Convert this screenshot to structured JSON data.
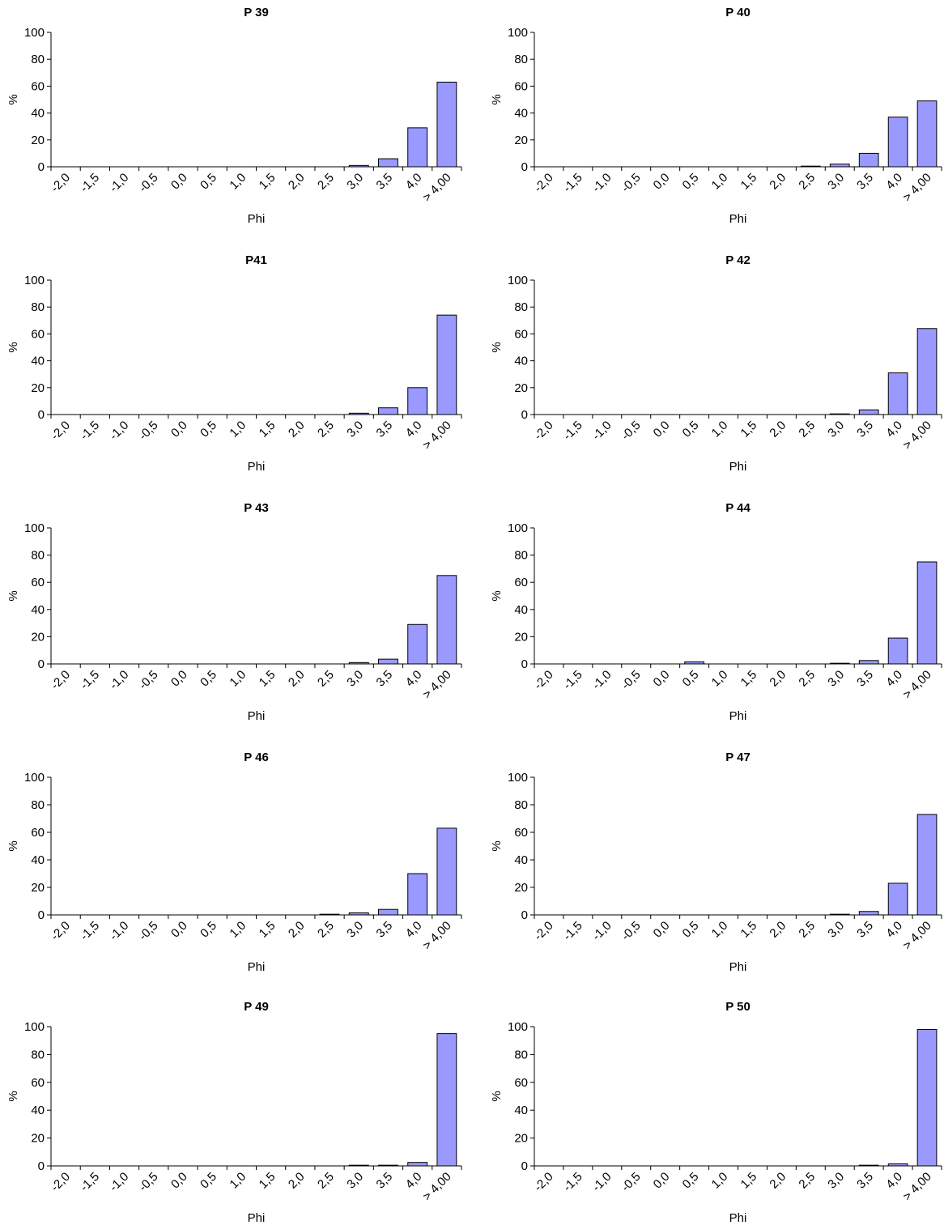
{
  "chart_data": [
    {
      "type": "bar",
      "title": "P 39",
      "ylabel": "%",
      "xlabel": "Phi",
      "color": "#9999ff",
      "categories": [
        "-2,0",
        "-1,5",
        "-1,0",
        "-0,5",
        "0,0",
        "0,5",
        "1,0",
        "1,5",
        "2,0",
        "2,5",
        "3,0",
        "3,5",
        "4,0",
        "> 4,00"
      ],
      "values": [
        0,
        0,
        0,
        0,
        0,
        0,
        0,
        0,
        0,
        0,
        1,
        6,
        29,
        63
      ],
      "ylim": [
        0,
        100
      ],
      "yticks": [
        0,
        20,
        40,
        60,
        80,
        100
      ]
    },
    {
      "type": "bar",
      "title": "P 40",
      "ylabel": "%",
      "xlabel": "Phi",
      "color": "#9999ff",
      "categories": [
        "-2,0",
        "-1,5",
        "-1,0",
        "-0,5",
        "0,0",
        "0,5",
        "1,0",
        "1,5",
        "2,0",
        "2,5",
        "3,0",
        "3,5",
        "4,0",
        "> 4,00"
      ],
      "values": [
        0,
        0,
        0,
        0,
        0,
        0,
        0,
        0,
        0,
        0.5,
        2,
        10,
        37,
        49
      ],
      "ylim": [
        0,
        100
      ],
      "yticks": [
        0,
        20,
        40,
        60,
        80,
        100
      ]
    },
    {
      "type": "bar",
      "title": "P41",
      "ylabel": "%",
      "xlabel": "Phi",
      "color": "#9999ff",
      "categories": [
        "-2,0",
        "-1,5",
        "-1,0",
        "-0,5",
        "0,0",
        "0,5",
        "1,0",
        "1,5",
        "2,0",
        "2,5",
        "3,0",
        "3,5",
        "4,0",
        "> 4,00"
      ],
      "values": [
        0,
        0,
        0,
        0,
        0,
        0,
        0,
        0,
        0,
        0,
        1,
        5,
        20,
        74
      ],
      "ylim": [
        0,
        100
      ],
      "yticks": [
        0,
        20,
        40,
        60,
        80,
        100
      ]
    },
    {
      "type": "bar",
      "title": "P 42",
      "ylabel": "%",
      "xlabel": "Phi",
      "color": "#9999ff",
      "categories": [
        "-2,0",
        "-1,5",
        "-1,0",
        "-0,5",
        "0,0",
        "0,5",
        "1,0",
        "1,5",
        "2,0",
        "2,5",
        "3,0",
        "3,5",
        "4,0",
        "> 4,00"
      ],
      "values": [
        0,
        0,
        0,
        0,
        0,
        0,
        0,
        0,
        0,
        0,
        0.5,
        3.5,
        31,
        64
      ],
      "ylim": [
        0,
        100
      ],
      "yticks": [
        0,
        20,
        40,
        60,
        80,
        100
      ]
    },
    {
      "type": "bar",
      "title": "P 43",
      "ylabel": "%",
      "xlabel": "Phi",
      "color": "#9999ff",
      "categories": [
        "-2,0",
        "-1,5",
        "-1,0",
        "-0,5",
        "0,0",
        "0,5",
        "1,0",
        "1,5",
        "2,0",
        "2,5",
        "3,0",
        "3,5",
        "4,0",
        "> 4,00"
      ],
      "values": [
        0,
        0,
        0,
        0,
        0,
        0,
        0,
        0,
        0,
        0,
        1,
        3.5,
        29,
        65
      ],
      "ylim": [
        0,
        100
      ],
      "yticks": [
        0,
        20,
        40,
        60,
        80,
        100
      ]
    },
    {
      "type": "bar",
      "title": "P 44",
      "ylabel": "%",
      "xlabel": "Phi",
      "color": "#9999ff",
      "categories": [
        "-2,0",
        "-1,5",
        "-1,0",
        "-0,5",
        "0,0",
        "0,5",
        "1,0",
        "1,5",
        "2,0",
        "2,5",
        "3,0",
        "3,5",
        "4,0",
        "> 4,00"
      ],
      "values": [
        0,
        0,
        0,
        0,
        0,
        1.5,
        0,
        0,
        0,
        0,
        0.5,
        2.5,
        19,
        75
      ],
      "ylim": [
        0,
        100
      ],
      "yticks": [
        0,
        20,
        40,
        60,
        80,
        100
      ]
    },
    {
      "type": "bar",
      "title": "P 46",
      "ylabel": "%",
      "xlabel": "Phi",
      "color": "#9999ff",
      "categories": [
        "-2,0",
        "-1,5",
        "-1,0",
        "-0,5",
        "0,0",
        "0,5",
        "1,0",
        "1,5",
        "2,0",
        "2,5",
        "3,0",
        "3,5",
        "4,0",
        "> 4,00"
      ],
      "values": [
        0,
        0,
        0,
        0,
        0,
        0,
        0,
        0,
        0,
        0.5,
        1.5,
        4,
        30,
        63
      ],
      "ylim": [
        0,
        100
      ],
      "yticks": [
        0,
        20,
        40,
        60,
        80,
        100
      ]
    },
    {
      "type": "bar",
      "title": "P 47",
      "ylabel": "%",
      "xlabel": "Phi",
      "color": "#9999ff",
      "categories": [
        "-2,0",
        "-1,5",
        "-1,0",
        "-0,5",
        "0,0",
        "0,5",
        "1,0",
        "1,5",
        "2,0",
        "2,5",
        "3,0",
        "3,5",
        "4,0",
        "> 4,00"
      ],
      "values": [
        0,
        0,
        0,
        0,
        0,
        0,
        0,
        0,
        0,
        0,
        0.5,
        2.5,
        23,
        73
      ],
      "ylim": [
        0,
        100
      ],
      "yticks": [
        0,
        20,
        40,
        60,
        80,
        100
      ]
    },
    {
      "type": "bar",
      "title": "P 49",
      "ylabel": "%",
      "xlabel": "Phi",
      "color": "#9999ff",
      "categories": [
        "-2,0",
        "-1,5",
        "-1,0",
        "-0,5",
        "0,0",
        "0,5",
        "1,0",
        "1,5",
        "2,0",
        "2,5",
        "3,0",
        "3,5",
        "4,0",
        "> 4,00"
      ],
      "values": [
        0,
        0,
        0,
        0,
        0,
        0,
        0,
        0,
        0,
        0,
        0.5,
        0.5,
        2.5,
        95
      ],
      "ylim": [
        0,
        100
      ],
      "yticks": [
        0,
        20,
        40,
        60,
        80,
        100
      ]
    },
    {
      "type": "bar",
      "title": "P 50",
      "ylabel": "%",
      "xlabel": "Phi",
      "color": "#9999ff",
      "categories": [
        "-2,0",
        "-1,5",
        "-1,0",
        "-0,5",
        "0,0",
        "0,5",
        "1,0",
        "1,5",
        "2,0",
        "2,5",
        "3,0",
        "3,5",
        "4,0",
        "> 4,00"
      ],
      "values": [
        0,
        0,
        0,
        0,
        0,
        0,
        0,
        0,
        0,
        0,
        0,
        0.5,
        1.5,
        98
      ],
      "ylim": [
        0,
        100
      ],
      "yticks": [
        0,
        20,
        40,
        60,
        80,
        100
      ]
    }
  ]
}
